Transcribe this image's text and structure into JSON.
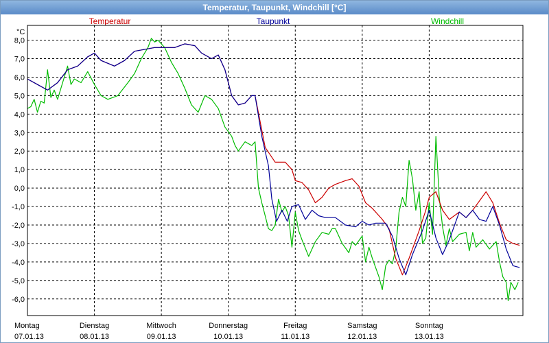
{
  "window": {
    "title": "Temperatur, Taupunkt, Windchill [°C]"
  },
  "chart_data": {
    "type": "line",
    "title": "Temperatur, Taupunkt, Windchill [°C]",
    "ylabel": "°C",
    "ylim": [
      -6.9,
      8.8
    ],
    "xlim": [
      0,
      7
    ],
    "grid": true,
    "y_ticks": [
      "8,0",
      "7,0",
      "6,0",
      "5,0",
      "4,0",
      "3,0",
      "2,0",
      "1,0",
      "0,0",
      "-1,0",
      "-2,0",
      "-3,0",
      "-4,0",
      "-5,0",
      "-6,0"
    ],
    "y_tick_values": [
      8,
      7,
      6,
      5,
      4,
      3,
      2,
      1,
      0,
      -1,
      -2,
      -3,
      -4,
      -5,
      -6
    ],
    "x_ticks": [
      {
        "day": "Montag",
        "date": "07.01.13"
      },
      {
        "day": "Dienstag",
        "date": "08.01.13"
      },
      {
        "day": "Mittwoch",
        "date": "09.01.13"
      },
      {
        "day": "Donnerstag",
        "date": "10.01.13"
      },
      {
        "day": "Freitag",
        "date": "11.01.13"
      },
      {
        "day": "Samstag",
        "date": "12.01.13"
      },
      {
        "day": "Sonntag",
        "date": "13.01.13"
      }
    ],
    "series": [
      {
        "name": "Temperatur",
        "color": "#cc0000",
        "points": [
          [
            0,
            5.9
          ],
          [
            0.15,
            5.6
          ],
          [
            0.3,
            5.3
          ],
          [
            0.45,
            5.7
          ],
          [
            0.6,
            6.4
          ],
          [
            0.75,
            6.6
          ],
          [
            0.9,
            7.1
          ],
          [
            1.0,
            7.3
          ],
          [
            1.1,
            6.9
          ],
          [
            1.3,
            6.6
          ],
          [
            1.45,
            6.9
          ],
          [
            1.6,
            7.4
          ],
          [
            1.9,
            7.6
          ],
          [
            2.2,
            7.6
          ],
          [
            2.35,
            7.8
          ],
          [
            2.5,
            7.7
          ],
          [
            2.6,
            7.3
          ],
          [
            2.75,
            7.0
          ],
          [
            2.85,
            7.2
          ],
          [
            2.95,
            6.4
          ],
          [
            3.05,
            5.0
          ],
          [
            3.15,
            4.5
          ],
          [
            3.25,
            4.6
          ],
          [
            3.35,
            5.0
          ],
          [
            3.4,
            5.0
          ],
          [
            3.55,
            2.2
          ],
          [
            3.7,
            1.4
          ],
          [
            3.85,
            1.4
          ],
          [
            3.95,
            1.0
          ],
          [
            4.0,
            0.4
          ],
          [
            4.1,
            0.3
          ],
          [
            4.2,
            -0.1
          ],
          [
            4.3,
            -0.8
          ],
          [
            4.4,
            -0.5
          ],
          [
            4.5,
            0.0
          ],
          [
            4.6,
            0.2
          ],
          [
            4.75,
            0.4
          ],
          [
            4.85,
            0.5
          ],
          [
            4.95,
            0.1
          ],
          [
            5.05,
            -0.8
          ],
          [
            5.15,
            -1.1
          ],
          [
            5.3,
            -1.7
          ],
          [
            5.4,
            -2.2
          ],
          [
            5.5,
            -3.8
          ],
          [
            5.6,
            -4.7
          ],
          [
            5.7,
            -3.8
          ],
          [
            5.85,
            -2.3
          ],
          [
            5.95,
            -1.2
          ],
          [
            6.0,
            -0.5
          ],
          [
            6.1,
            -0.2
          ],
          [
            6.2,
            -1.2
          ],
          [
            6.3,
            -1.7
          ],
          [
            6.45,
            -1.3
          ],
          [
            6.55,
            -1.6
          ],
          [
            6.65,
            -1.2
          ],
          [
            6.75,
            -0.7
          ],
          [
            6.85,
            -0.2
          ],
          [
            6.95,
            -0.8
          ],
          [
            7.05,
            -1.9
          ],
          [
            7.15,
            -2.8
          ],
          [
            7.25,
            -3.0
          ],
          [
            7.35,
            -3.1
          ]
        ]
      },
      {
        "name": "Taupunkt",
        "color": "#000099",
        "points": [
          [
            0,
            5.9
          ],
          [
            0.15,
            5.6
          ],
          [
            0.3,
            5.3
          ],
          [
            0.45,
            5.7
          ],
          [
            0.6,
            6.4
          ],
          [
            0.75,
            6.6
          ],
          [
            0.9,
            7.1
          ],
          [
            1.0,
            7.3
          ],
          [
            1.1,
            6.9
          ],
          [
            1.3,
            6.6
          ],
          [
            1.45,
            6.9
          ],
          [
            1.6,
            7.4
          ],
          [
            1.9,
            7.6
          ],
          [
            2.2,
            7.6
          ],
          [
            2.35,
            7.8
          ],
          [
            2.5,
            7.7
          ],
          [
            2.6,
            7.3
          ],
          [
            2.75,
            7.0
          ],
          [
            2.85,
            7.2
          ],
          [
            2.95,
            6.4
          ],
          [
            3.05,
            5.0
          ],
          [
            3.15,
            4.5
          ],
          [
            3.25,
            4.6
          ],
          [
            3.35,
            5.0
          ],
          [
            3.4,
            5.0
          ],
          [
            3.5,
            2.8
          ],
          [
            3.6,
            1.2
          ],
          [
            3.65,
            -0.6
          ],
          [
            3.72,
            -1.8
          ],
          [
            3.8,
            -1.2
          ],
          [
            3.88,
            -1.8
          ],
          [
            3.95,
            -1.0
          ],
          [
            4.05,
            -0.9
          ],
          [
            4.15,
            -1.7
          ],
          [
            4.25,
            -1.2
          ],
          [
            4.35,
            -1.5
          ],
          [
            4.45,
            -1.6
          ],
          [
            4.6,
            -1.6
          ],
          [
            4.75,
            -2.0
          ],
          [
            4.9,
            -2.1
          ],
          [
            5.0,
            -1.8
          ],
          [
            5.1,
            -2.0
          ],
          [
            5.2,
            -1.9
          ],
          [
            5.35,
            -1.9
          ],
          [
            5.45,
            -2.6
          ],
          [
            5.55,
            -3.8
          ],
          [
            5.65,
            -4.7
          ],
          [
            5.75,
            -3.6
          ],
          [
            5.9,
            -2.3
          ],
          [
            6.0,
            -1.2
          ],
          [
            6.1,
            -2.7
          ],
          [
            6.2,
            -3.6
          ],
          [
            6.3,
            -2.8
          ],
          [
            6.45,
            -1.3
          ],
          [
            6.55,
            -1.6
          ],
          [
            6.65,
            -1.2
          ],
          [
            6.75,
            -1.7
          ],
          [
            6.85,
            -1.8
          ],
          [
            6.95,
            -1.0
          ],
          [
            7.05,
            -2.0
          ],
          [
            7.15,
            -3.3
          ],
          [
            7.25,
            -4.2
          ],
          [
            7.35,
            -4.3
          ]
        ]
      },
      {
        "name": "Windchill",
        "color": "#00bb00",
        "points": [
          [
            0,
            4.3
          ],
          [
            0.05,
            4.4
          ],
          [
            0.1,
            4.8
          ],
          [
            0.15,
            4.1
          ],
          [
            0.2,
            4.7
          ],
          [
            0.25,
            4.6
          ],
          [
            0.3,
            6.4
          ],
          [
            0.35,
            4.9
          ],
          [
            0.4,
            5.3
          ],
          [
            0.45,
            4.8
          ],
          [
            0.5,
            5.4
          ],
          [
            0.55,
            6.0
          ],
          [
            0.6,
            6.6
          ],
          [
            0.65,
            5.6
          ],
          [
            0.7,
            5.9
          ],
          [
            0.8,
            5.7
          ],
          [
            0.9,
            6.3
          ],
          [
            1.0,
            5.6
          ],
          [
            1.1,
            5.0
          ],
          [
            1.2,
            4.8
          ],
          [
            1.35,
            5.0
          ],
          [
            1.5,
            5.7
          ],
          [
            1.6,
            6.2
          ],
          [
            1.7,
            7.0
          ],
          [
            1.8,
            7.6
          ],
          [
            1.85,
            8.1
          ],
          [
            1.9,
            7.9
          ],
          [
            1.95,
            8.0
          ],
          [
            2.05,
            7.6
          ],
          [
            2.15,
            6.8
          ],
          [
            2.25,
            6.2
          ],
          [
            2.35,
            5.4
          ],
          [
            2.45,
            4.5
          ],
          [
            2.55,
            4.1
          ],
          [
            2.65,
            5.0
          ],
          [
            2.75,
            4.8
          ],
          [
            2.85,
            4.3
          ],
          [
            2.95,
            3.3
          ],
          [
            3.05,
            2.8
          ],
          [
            3.1,
            2.3
          ],
          [
            3.15,
            2.0
          ],
          [
            3.25,
            2.5
          ],
          [
            3.35,
            2.3
          ],
          [
            3.4,
            2.5
          ],
          [
            3.45,
            0.0
          ],
          [
            3.5,
            -0.8
          ],
          [
            3.55,
            -1.5
          ],
          [
            3.6,
            -2.2
          ],
          [
            3.65,
            -2.3
          ],
          [
            3.7,
            -2.0
          ],
          [
            3.75,
            -0.6
          ],
          [
            3.8,
            -1.3
          ],
          [
            3.85,
            -1.0
          ],
          [
            3.9,
            -1.5
          ],
          [
            3.95,
            -3.2
          ],
          [
            4.0,
            -1.3
          ],
          [
            4.05,
            -2.3
          ],
          [
            4.1,
            -2.8
          ],
          [
            4.2,
            -3.7
          ],
          [
            4.3,
            -2.9
          ],
          [
            4.4,
            -2.4
          ],
          [
            4.5,
            -2.5
          ],
          [
            4.55,
            -2.2
          ],
          [
            4.6,
            -2.2
          ],
          [
            4.7,
            -3.0
          ],
          [
            4.8,
            -3.5
          ],
          [
            4.85,
            -2.9
          ],
          [
            4.9,
            -3.1
          ],
          [
            5.0,
            -2.6
          ],
          [
            5.05,
            -4.0
          ],
          [
            5.1,
            -3.2
          ],
          [
            5.15,
            -3.8
          ],
          [
            5.25,
            -4.8
          ],
          [
            5.3,
            -5.5
          ],
          [
            5.35,
            -4.2
          ],
          [
            5.4,
            -3.9
          ],
          [
            5.45,
            -4.1
          ],
          [
            5.5,
            -3.3
          ],
          [
            5.55,
            -1.3
          ],
          [
            5.6,
            -0.5
          ],
          [
            5.65,
            -1.0
          ],
          [
            5.7,
            1.5
          ],
          [
            5.75,
            0.5
          ],
          [
            5.8,
            -1.2
          ],
          [
            5.85,
            -0.2
          ],
          [
            5.9,
            -3.0
          ],
          [
            5.95,
            -2.7
          ],
          [
            6.0,
            -0.8
          ],
          [
            6.05,
            -2.5
          ],
          [
            6.1,
            2.8
          ],
          [
            6.15,
            -0.5
          ],
          [
            6.2,
            -2.1
          ],
          [
            6.25,
            -3.1
          ],
          [
            6.3,
            -2.2
          ],
          [
            6.35,
            -2.9
          ],
          [
            6.45,
            -2.5
          ],
          [
            6.55,
            -2.4
          ],
          [
            6.6,
            -3.4
          ],
          [
            6.65,
            -2.4
          ],
          [
            6.7,
            -3.2
          ],
          [
            6.8,
            -2.8
          ],
          [
            6.9,
            -3.3
          ],
          [
            7.0,
            -2.9
          ],
          [
            7.05,
            -4.0
          ],
          [
            7.1,
            -4.8
          ],
          [
            7.15,
            -5.1
          ],
          [
            7.18,
            -6.1
          ],
          [
            7.22,
            -5.1
          ],
          [
            7.28,
            -5.5
          ],
          [
            7.33,
            -5.1
          ]
        ]
      }
    ]
  }
}
